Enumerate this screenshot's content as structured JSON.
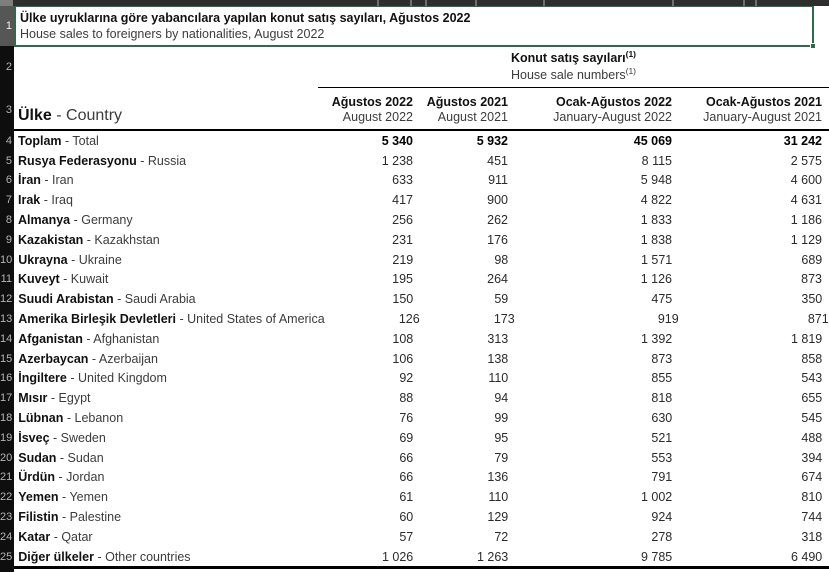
{
  "title": {
    "tr": "Ülke uyruklarına göre yabancılara yapılan konut satış sayıları, Ağustos 2022",
    "en": "House sales to foreigners by nationalities, August 2022"
  },
  "group_header": {
    "tr": "Konut satış sayıları",
    "en": "House sale numbers",
    "footnote_marker": "(1)"
  },
  "table": {
    "label_header": {
      "tr": "Ülke",
      "en": " - Country"
    },
    "columns": [
      {
        "tr": "Ağustos 2022",
        "en": "August 2022"
      },
      {
        "tr": "Ağustos 2021",
        "en": "August 2021"
      },
      {
        "tr": "Ocak-Ağustos 2022",
        "en": "January-August 2022"
      },
      {
        "tr": "Ocak-Ağustos 2021",
        "en": "January-August 2021"
      }
    ],
    "rows": [
      {
        "num": "4",
        "tr": "Toplam",
        "en": " - Total",
        "bold": true,
        "values": [
          "5 340",
          "5 932",
          "45 069",
          "31 242"
        ]
      },
      {
        "num": "5",
        "tr": "Rusya Federasyonu",
        "en": " - Russia",
        "bold": false,
        "values": [
          "1 238",
          "451",
          "8 115",
          "2 575"
        ]
      },
      {
        "num": "6",
        "tr": "İran",
        "en": " - Iran",
        "bold": false,
        "values": [
          "633",
          "911",
          "5 948",
          "4 600"
        ]
      },
      {
        "num": "7",
        "tr": "Irak",
        "en": " - Iraq",
        "bold": false,
        "values": [
          "417",
          "900",
          "4 822",
          "4 631"
        ]
      },
      {
        "num": "8",
        "tr": "Almanya",
        "en": " - Germany",
        "bold": false,
        "values": [
          "256",
          "262",
          "1 833",
          "1 186"
        ]
      },
      {
        "num": "9",
        "tr": "Kazakistan",
        "en": " - Kazakhstan",
        "bold": false,
        "values": [
          "231",
          "176",
          "1 838",
          "1 129"
        ]
      },
      {
        "num": "10",
        "tr": "Ukrayna",
        "en": " - Ukraine",
        "bold": false,
        "values": [
          "219",
          "98",
          "1 571",
          "689"
        ]
      },
      {
        "num": "11",
        "tr": "Kuveyt",
        "en": " - Kuwait",
        "bold": false,
        "values": [
          "195",
          "264",
          "1 126",
          "873"
        ]
      },
      {
        "num": "12",
        "tr": "Suudi Arabistan",
        "en": " - Saudi Arabia",
        "bold": false,
        "values": [
          "150",
          "59",
          "475",
          "350"
        ]
      },
      {
        "num": "13",
        "tr": "Amerika Birleşik Devletleri",
        "en": " - United States of America",
        "bold": false,
        "values": [
          "126",
          "173",
          "919",
          "871"
        ]
      },
      {
        "num": "14",
        "tr": "Afganistan",
        "en": " - Afghanistan",
        "bold": false,
        "values": [
          "108",
          "313",
          "1 392",
          "1 819"
        ]
      },
      {
        "num": "15",
        "tr": "Azerbaycan",
        "en": " - Azerbaijan",
        "bold": false,
        "values": [
          "106",
          "138",
          "873",
          "858"
        ]
      },
      {
        "num": "16",
        "tr": "İngiltere",
        "en": " - United Kingdom",
        "bold": false,
        "values": [
          "92",
          "110",
          "855",
          "543"
        ]
      },
      {
        "num": "17",
        "tr": "Mısır",
        "en": " - Egypt",
        "bold": false,
        "values": [
          "88",
          "94",
          "818",
          "655"
        ]
      },
      {
        "num": "18",
        "tr": "Lübnan",
        "en": " - Lebanon",
        "bold": false,
        "values": [
          "76",
          "99",
          "630",
          "545"
        ]
      },
      {
        "num": "19",
        "tr": "İsveç",
        "en": " - Sweden",
        "bold": false,
        "values": [
          "69",
          "95",
          "521",
          "488"
        ]
      },
      {
        "num": "20",
        "tr": "Sudan",
        "en": " - Sudan",
        "bold": false,
        "values": [
          "66",
          "79",
          "553",
          "394"
        ]
      },
      {
        "num": "21",
        "tr": "Ürdün",
        "en": " - Jordan",
        "bold": false,
        "values": [
          "66",
          "136",
          "791",
          "674"
        ]
      },
      {
        "num": "22",
        "tr": "Yemen",
        "en": " - Yemen",
        "bold": false,
        "values": [
          "61",
          "110",
          "1 002",
          "810"
        ]
      },
      {
        "num": "23",
        "tr": "Filistin",
        "en": " - Palestine",
        "bold": false,
        "values": [
          "60",
          "129",
          "924",
          "744"
        ]
      },
      {
        "num": "24",
        "tr": "Katar",
        "en": " - Qatar",
        "bold": false,
        "values": [
          "57",
          "72",
          "278",
          "318"
        ]
      },
      {
        "num": "25",
        "tr": "Diğer ülkeler",
        "en": " - Other countries",
        "bold": false,
        "values": [
          "1 026",
          "1 263",
          "9 785",
          "6 490"
        ]
      }
    ]
  },
  "gutter": {
    "r1": "1",
    "r2": "2",
    "r3": "3"
  },
  "colors": {
    "selection_green": "#2d6a4e",
    "gutter_bg": "#0e0e0e",
    "gutter_text": "#b5b5b5",
    "chrome_strip": "#2e2e2e",
    "rule_black": "#000000"
  },
  "decor": {
    "strip_tick_positions": [
      377,
      410,
      425,
      475,
      543,
      672,
      743,
      755
    ]
  }
}
